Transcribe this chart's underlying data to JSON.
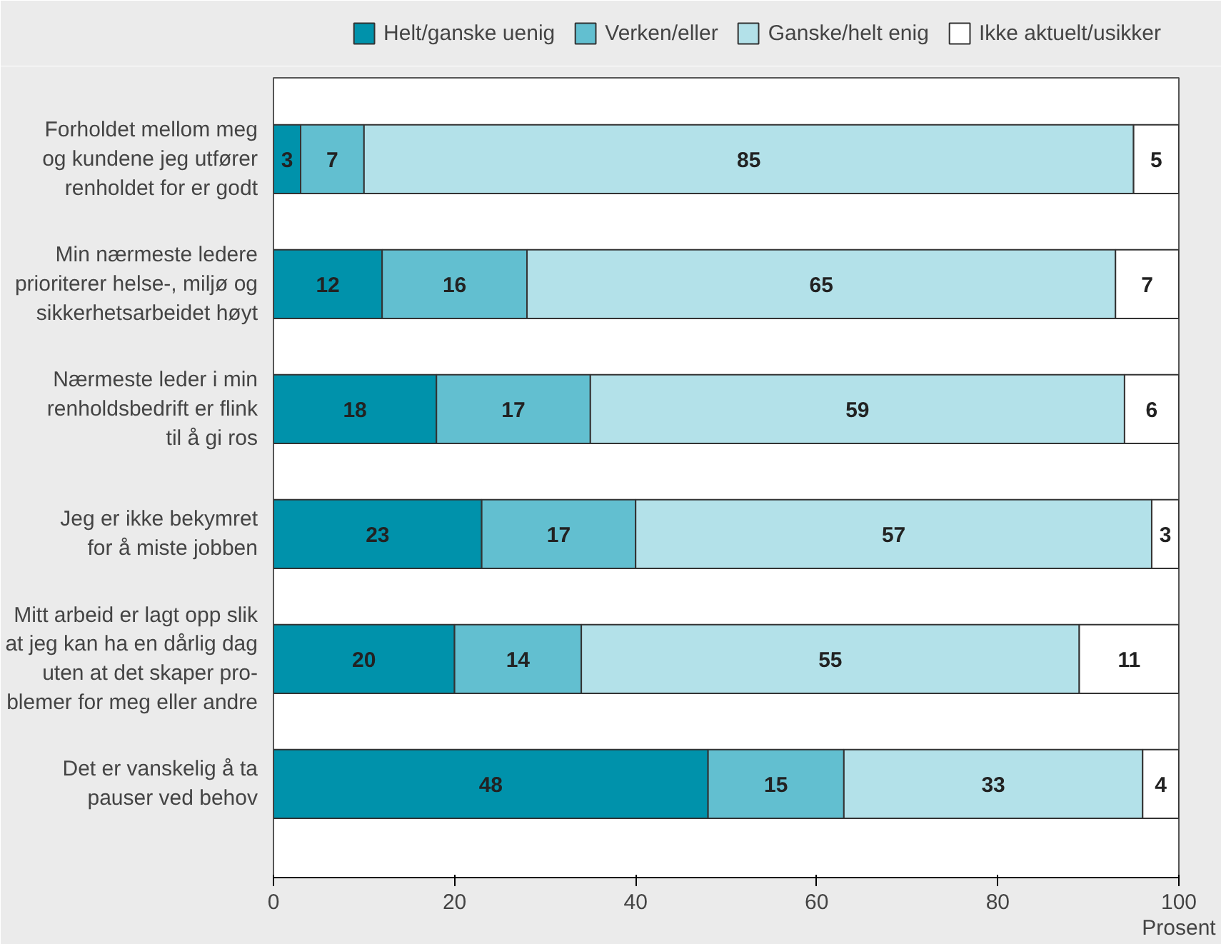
{
  "chart_data": {
    "type": "bar",
    "orientation": "horizontal",
    "stacked": true,
    "data_labels": true,
    "legend": "top right",
    "grid": false,
    "xlabel": "Prosent",
    "xlim": [
      0,
      100
    ],
    "xticks": [
      0,
      20,
      40,
      60,
      80,
      100
    ],
    "categories": [
      "Forholdet mellom meg\nog kundene jeg utfører\nrenholdet for er godt",
      "Min nærmeste ledere\nprioriterer helse-, miljø og\nsikkerhetsarbeidet høyt",
      "Nærmeste leder i min\nrenholdsbedrift er flink\ntil å gi ros",
      "Jeg er ikke bekymret\nfor å miste jobben",
      "Mitt arbeid er lagt opp slik\nat jeg kan ha en dårlig dag\nuten at det skaper pro-\nblemer for meg eller andre",
      "Det er vanskelig å ta\npauser ved behov"
    ],
    "series": [
      {
        "name": "Helt/ganske uenig",
        "color": "#0092ab",
        "values": [
          3,
          12,
          18,
          23,
          20,
          48
        ]
      },
      {
        "name": "Verken/eller",
        "color": "#62bfd0",
        "values": [
          7,
          16,
          17,
          17,
          14,
          15
        ]
      },
      {
        "name": "Ganske/helt enig",
        "color": "#b3e1e9",
        "values": [
          85,
          65,
          59,
          57,
          55,
          33
        ]
      },
      {
        "name": "Ikke aktuelt/usikker",
        "color": "#ffffff",
        "values": [
          5,
          7,
          6,
          3,
          11,
          4
        ]
      }
    ]
  }
}
